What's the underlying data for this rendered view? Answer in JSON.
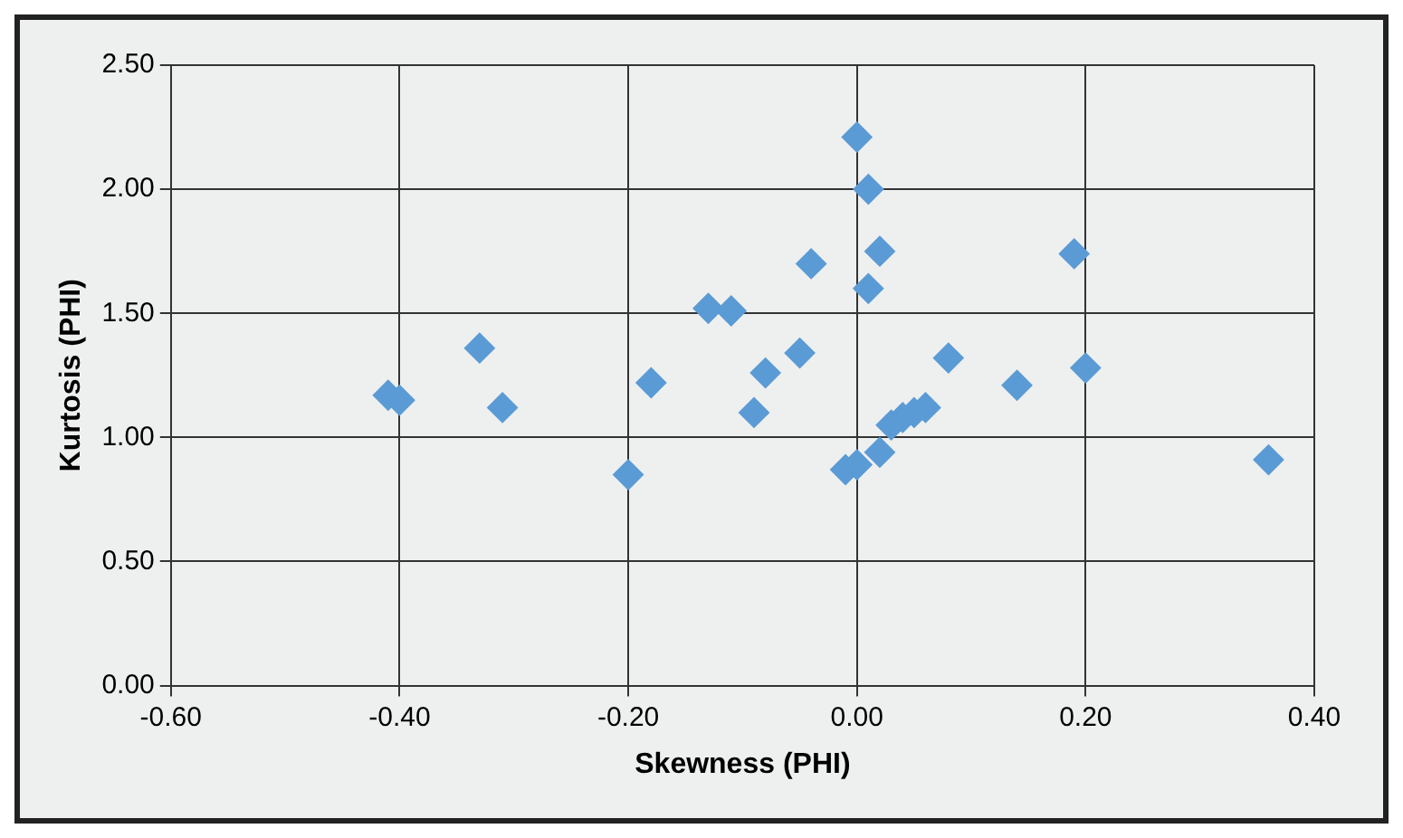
{
  "chart_data": {
    "type": "scatter",
    "xlabel": "Skewness (PHI)",
    "ylabel": "Kurtosis (PHI)",
    "x": [
      -0.41,
      -0.4,
      -0.33,
      -0.31,
      -0.2,
      -0.18,
      -0.13,
      -0.11,
      -0.09,
      -0.08,
      -0.05,
      -0.04,
      0.0,
      0.01,
      0.01,
      0.02,
      -0.01,
      0.0,
      0.02,
      0.03,
      0.04,
      0.05,
      0.06,
      0.08,
      0.14,
      0.19,
      0.2,
      0.36
    ],
    "values": [
      1.17,
      1.15,
      1.36,
      1.12,
      0.85,
      1.22,
      1.52,
      1.51,
      1.1,
      1.26,
      1.34,
      1.7,
      2.21,
      2.0,
      1.6,
      1.75,
      0.87,
      0.89,
      0.94,
      1.05,
      1.08,
      1.1,
      1.12,
      1.32,
      1.21,
      1.74,
      1.28,
      0.91
    ],
    "color": "#5b9bd5",
    "marker": "diamond",
    "grid": true,
    "xlim": [
      -0.6,
      0.4
    ],
    "xticks": [
      {
        "value": -0.6,
        "label": "-0.60"
      },
      {
        "value": -0.4,
        "label": "-0.40"
      },
      {
        "value": -0.2,
        "label": "-0.20"
      },
      {
        "value": 0,
        "label": "0.00"
      },
      {
        "value": 0.2,
        "label": "0.20"
      },
      {
        "value": 0.4,
        "label": "0.40"
      }
    ],
    "ylim": [
      0,
      2.5
    ],
    "yticks": [
      {
        "value": 0,
        "label": "0.00"
      },
      {
        "value": 0.5,
        "label": "0.50"
      },
      {
        "value": 1,
        "label": "1.00"
      },
      {
        "value": 1.5,
        "label": "1.50"
      },
      {
        "value": 2,
        "label": "2.00"
      },
      {
        "value": 2.5,
        "label": "2.50"
      }
    ]
  }
}
